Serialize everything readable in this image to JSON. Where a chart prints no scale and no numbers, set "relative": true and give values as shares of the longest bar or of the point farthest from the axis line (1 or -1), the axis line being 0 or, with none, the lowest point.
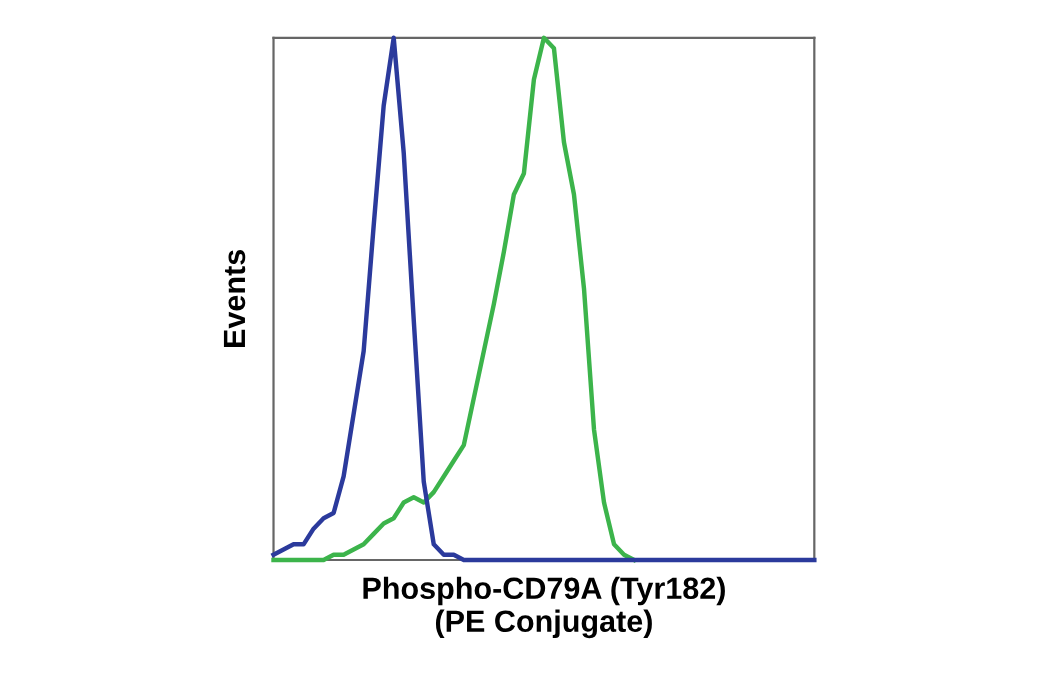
{
  "chart_data": {
    "type": "line",
    "relative": true,
    "xlabel": "Phospho-CD79A (Tyr182)\n(PE Conjugate)",
    "ylabel": "Events",
    "tick_labels": false,
    "grid": false,
    "legend": false,
    "marker": "none",
    "line_style": "solid",
    "categories": [
      null,
      null,
      null,
      null,
      null,
      null,
      null,
      null,
      null,
      null,
      null,
      null,
      null,
      null,
      null,
      null,
      null,
      null,
      null,
      null,
      null,
      null,
      null,
      null,
      null,
      null,
      null,
      null,
      null,
      null,
      null,
      null,
      null,
      null,
      null,
      null,
      null,
      null,
      null,
      null,
      null,
      null,
      null,
      null,
      null,
      null,
      null,
      null,
      null,
      null,
      null,
      null,
      null,
      null,
      null
    ],
    "series": [
      {
        "color": "#2b3a9c",
        "values": [
          0.01,
          0.02,
          0.03,
          0.03,
          0.06,
          0.08,
          0.09,
          0.16,
          0.28,
          0.4,
          0.64,
          0.87,
          1.0,
          0.78,
          0.46,
          0.15,
          0.03,
          0.01,
          0.01,
          0,
          0,
          0,
          0,
          0,
          0,
          0,
          0,
          0,
          0,
          0,
          0,
          0,
          0,
          0,
          0,
          0,
          0,
          0,
          0,
          0,
          0,
          0,
          0,
          0,
          0,
          0,
          0,
          0,
          0,
          0,
          0,
          0,
          0,
          0,
          0
        ]
      },
      {
        "color": "#3cb44b",
        "values": [
          0,
          0,
          0,
          0,
          0,
          0,
          0.01,
          0.01,
          0.02,
          0.03,
          0.05,
          0.07,
          0.08,
          0.11,
          0.12,
          0.11,
          0.13,
          0.16,
          0.19,
          0.22,
          0.31,
          0.4,
          0.49,
          0.59,
          0.7,
          0.74,
          0.92,
          1.0,
          0.98,
          0.8,
          0.7,
          0.52,
          0.25,
          0.11,
          0.03,
          0.01,
          0,
          null,
          null,
          null,
          null,
          null,
          null,
          null,
          null,
          null,
          null,
          null,
          null,
          null,
          null,
          null,
          null,
          null,
          null
        ]
      }
    ]
  }
}
